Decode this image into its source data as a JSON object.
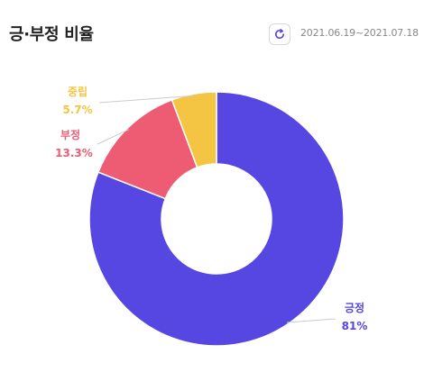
{
  "header": {
    "title": "긍·부정 비율",
    "date_range": "2021.06.19~2021.07.18",
    "refresh_icon": "refresh-icon"
  },
  "chart_data": {
    "type": "pie",
    "variant": "donut",
    "slices": [
      {
        "label": "긍정",
        "value": 81,
        "value_label": "81%",
        "color": "#5646e2"
      },
      {
        "label": "부정",
        "value": 13.3,
        "value_label": "13.3%",
        "color": "#ee5c74"
      },
      {
        "label": "중립",
        "value": 5.7,
        "value_label": "5.7%",
        "color": "#f3c543"
      }
    ],
    "start": "12 o'clock",
    "direction": "clockwise",
    "labels": "outside with leader lines"
  }
}
